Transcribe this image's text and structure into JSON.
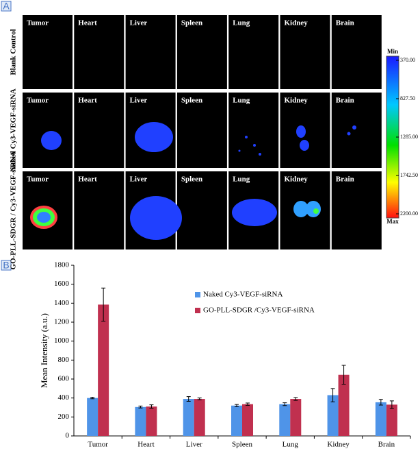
{
  "panel_a": {
    "label": "A",
    "organs": [
      "Tumor",
      "Heart",
      "Liver",
      "Spleen",
      "Lung",
      "Kidney",
      "Brain"
    ],
    "rows": [
      "Blank Control",
      "Naked Cy3-VEGF-siRNA",
      "GO-PLL-SDGR / Cy3-VEGF-siRNA"
    ],
    "colorbar": {
      "min_label": "Min",
      "max_label": "Max",
      "ticks": [
        {
          "value": 370,
          "label": "370.00"
        },
        {
          "value": 827.5,
          "label": "827.50"
        },
        {
          "value": 1285,
          "label": "1285.00"
        },
        {
          "value": 1742.5,
          "label": "1742.50"
        },
        {
          "value": 2200,
          "label": "2200.00"
        }
      ]
    }
  },
  "panel_b_label": "B",
  "chart_data": {
    "type": "bar",
    "ylabel": "Mean Intensity (a.u.)",
    "categories": [
      "Tumor",
      "Heart",
      "Liver",
      "Spleen",
      "Lung",
      "Kidney",
      "Brain"
    ],
    "series": [
      {
        "name": "Naked Cy3-VEGF-siRNA",
        "color": "#4f94e8",
        "values": [
          400,
          305,
          390,
          320,
          335,
          430,
          355
        ],
        "errors": [
          8,
          10,
          25,
          12,
          15,
          70,
          30
        ]
      },
      {
        "name": "GO-PLL-SDGR /Cy3-VEGF-siRNA",
        "color": "#c0304f",
        "values": [
          1385,
          310,
          390,
          335,
          390,
          645,
          330
        ],
        "errors": [
          175,
          18,
          10,
          12,
          15,
          100,
          40
        ]
      }
    ],
    "ylim": [
      0,
      1800
    ],
    "yticks": [
      0,
      200,
      400,
      600,
      800,
      1000,
      1200,
      1400,
      1600,
      1800
    ],
    "legend": "upper right"
  }
}
